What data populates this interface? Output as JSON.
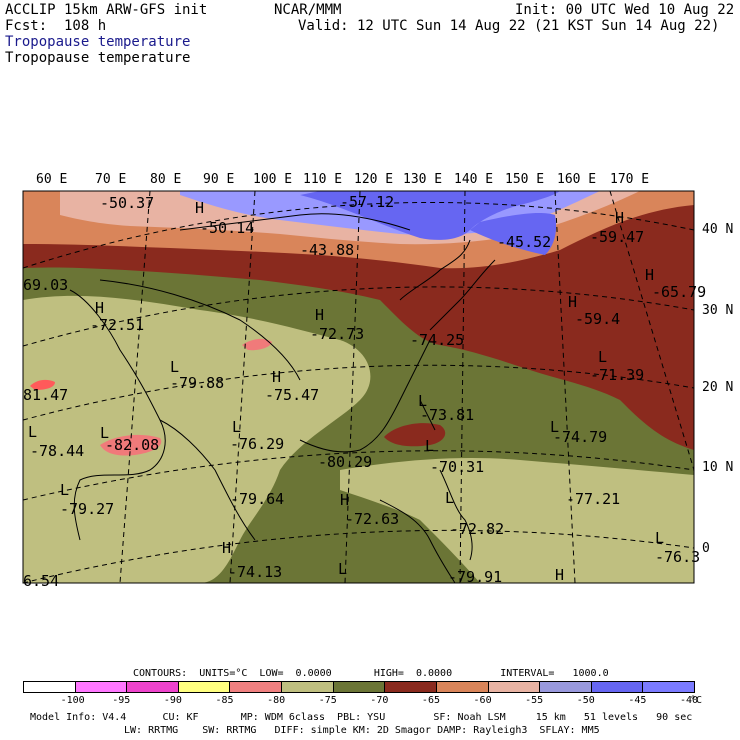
{
  "header": {
    "model": "ACCLIP 15km ARW-GFS init",
    "forecast": "Fcst:  108 h",
    "agency": "NCAR/MMM",
    "init": "Init: 00 UTC Wed 10 Aug 22",
    "valid": "Valid: 12 UTC Sun 14 Aug 22 (21 KST Sun 14 Aug 22)",
    "field_colored": "Tropopause temperature",
    "field_black": "Tropopause temperature"
  },
  "map": {
    "lon_labels": [
      "60 E",
      "70 E",
      "80 E",
      "90 E",
      "100 E",
      "110 E",
      "120 E",
      "130 E",
      "140 E",
      "150 E",
      "160 E",
      "170 E"
    ],
    "lat_labels": [
      "40 N",
      "30 N",
      "20 N",
      "10 N",
      "0"
    ],
    "region_colors": {
      "c1": "#8a2a1e",
      "c2": "#d9855a",
      "c3": "#e8b3a3",
      "c4": "#9999ff",
      "c5": "#6666f2",
      "c6": "#6b7536",
      "c7": "#bfbf80",
      "c8": "#f07a7a",
      "c9": "#ff5a5a"
    },
    "max_min_labels": [
      {
        "t": "-50.37"
      },
      {
        "t": "H"
      },
      {
        "t": "-50.14"
      },
      {
        "t": "-57.12"
      },
      {
        "t": "-43.88"
      },
      {
        "t": "-45.52"
      },
      {
        "t": "H"
      },
      {
        "t": "-59.47"
      },
      {
        "t": "H"
      },
      {
        "t": "-65.79"
      },
      {
        "t": "69.03"
      },
      {
        "t": "H"
      },
      {
        "t": "-72.51"
      },
      {
        "t": "H"
      },
      {
        "t": "-72.73"
      },
      {
        "t": "-74.25"
      },
      {
        "t": "H"
      },
      {
        "t": "-59.4"
      },
      {
        "t": "L"
      },
      {
        "t": "-71.39"
      },
      {
        "t": "L"
      },
      {
        "t": "-79.88"
      },
      {
        "t": "H"
      },
      {
        "t": "-75.47"
      },
      {
        "t": "81.47"
      },
      {
        "t": "L"
      },
      {
        "t": "-73.81"
      },
      {
        "t": "L"
      },
      {
        "t": "-82.08"
      },
      {
        "t": "L"
      },
      {
        "t": "-76.29"
      },
      {
        "t": "L"
      },
      {
        "t": "-74.79"
      },
      {
        "t": "L"
      },
      {
        "t": "-78.44"
      },
      {
        "t": "-80.29"
      },
      {
        "t": "L"
      },
      {
        "t": "-70.31"
      },
      {
        "t": "L"
      },
      {
        "t": "-79.27"
      },
      {
        "t": "-79.64"
      },
      {
        "t": "H"
      },
      {
        "t": "-77.21"
      },
      {
        "t": "-72.63"
      },
      {
        "t": "L"
      },
      {
        "t": "-72.82"
      },
      {
        "t": "L"
      },
      {
        "t": "-76.3"
      },
      {
        "t": "H"
      },
      {
        "t": "-74.13"
      },
      {
        "t": "L"
      },
      {
        "t": "-79.91"
      },
      {
        "t": "H"
      },
      {
        "t": "6.54"
      }
    ]
  },
  "colorbar": {
    "colors": [
      "#ffffff",
      "#ff77ff",
      "#ee44cc",
      "#ffff80",
      "#f08080",
      "#bfbf80",
      "#6b7536",
      "#8a2a1e",
      "#d9855a",
      "#e8b3a3",
      "#9999dd",
      "#6666f2",
      "#7b7bff"
    ],
    "labels": [
      "-100",
      "-95",
      "-90",
      "-85",
      "-80",
      "-75",
      "-70",
      "-65",
      "-60",
      "-55",
      "-50",
      "-45",
      "-40"
    ],
    "unit": "°C",
    "contours": "CONTOURS:  UNITS=°C  LOW=  0.0000       HIGH=  0.0000        INTERVAL=   1000.0"
  },
  "footer": {
    "line1": "Model Info: V4.4      CU: KF       MP: WDM 6class  PBL: YSU        SF: Noah LSM     15 km   51 levels   90 sec",
    "line2": "LW: RRTMG    SW: RRTMG   DIFF: simple KM: 2D Smagor DAMP: Rayleigh3  SFLAY: MM5"
  }
}
